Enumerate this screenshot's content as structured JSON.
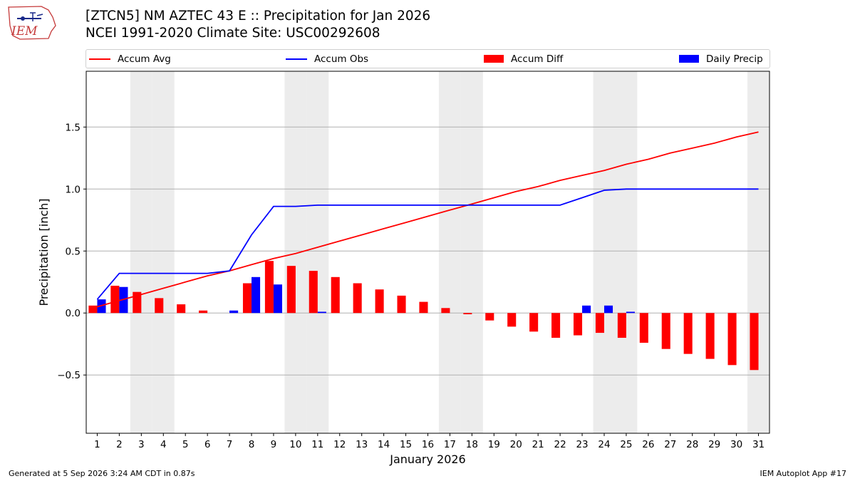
{
  "header": {
    "title_line1": "[ZTCN5] NM AZTEC 43 E :: Precipitation for Jan 2026",
    "title_line2": "NCEI 1991-2020 Climate Site: USC00292608"
  },
  "logo": {
    "text": "IEM"
  },
  "legend": {
    "accum_avg": "Accum Avg",
    "accum_obs": "Accum Obs",
    "accum_diff": "Accum Diff",
    "daily_precip": "Daily Precip"
  },
  "colors": {
    "avg": "#ff0000",
    "obs": "#0000ff",
    "diff": "#ff0000",
    "daily": "#0000ff",
    "weekend": "#ececec",
    "grid": "#b0b0b0"
  },
  "chart_data": {
    "type": "bar",
    "xlabel": "January 2026",
    "ylabel": "Precipitation [inch]",
    "ylim": [
      -0.97,
      1.95
    ],
    "yticks": [
      -0.5,
      0.0,
      0.5,
      1.0,
      1.5
    ],
    "ytick_labels": [
      "−0.5",
      "0.0",
      "0.5",
      "1.0",
      "1.5"
    ],
    "grid": "horizontal",
    "legend_position": "top",
    "x": [
      1,
      2,
      3,
      4,
      5,
      6,
      7,
      8,
      9,
      10,
      11,
      12,
      13,
      14,
      15,
      16,
      17,
      18,
      19,
      20,
      21,
      22,
      23,
      24,
      25,
      26,
      27,
      28,
      29,
      30,
      31
    ],
    "shaded_days": [
      3,
      4,
      10,
      11,
      17,
      18,
      24,
      25,
      31
    ],
    "series": [
      {
        "name": "Accum Avg",
        "kind": "line",
        "values": [
          0.05,
          0.1,
          0.15,
          0.2,
          0.25,
          0.3,
          0.34,
          0.39,
          0.44,
          0.48,
          0.53,
          0.58,
          0.63,
          0.68,
          0.73,
          0.78,
          0.83,
          0.88,
          0.93,
          0.98,
          1.02,
          1.07,
          1.11,
          1.15,
          1.2,
          1.24,
          1.29,
          1.33,
          1.37,
          1.42,
          1.46
        ]
      },
      {
        "name": "Accum Obs",
        "kind": "line",
        "values": [
          0.11,
          0.32,
          0.32,
          0.32,
          0.32,
          0.32,
          0.34,
          0.63,
          0.86,
          0.86,
          0.87,
          0.87,
          0.87,
          0.87,
          0.87,
          0.87,
          0.87,
          0.87,
          0.87,
          0.87,
          0.87,
          0.87,
          0.93,
          0.99,
          1.0,
          1.0,
          1.0,
          1.0,
          1.0,
          1.0,
          1.0
        ]
      },
      {
        "name": "Accum Diff",
        "kind": "bar",
        "values": [
          0.06,
          0.22,
          0.17,
          0.12,
          0.07,
          0.02,
          0.0,
          0.24,
          0.42,
          0.38,
          0.34,
          0.29,
          0.24,
          0.19,
          0.14,
          0.09,
          0.04,
          -0.01,
          -0.06,
          -0.11,
          -0.15,
          -0.2,
          -0.18,
          -0.16,
          -0.2,
          -0.24,
          -0.29,
          -0.33,
          -0.37,
          -0.42,
          -0.46
        ]
      },
      {
        "name": "Daily Precip",
        "kind": "bar",
        "values": [
          0.11,
          0.21,
          0.0,
          0.0,
          0.0,
          0.0,
          0.02,
          0.29,
          0.23,
          0.0,
          0.01,
          0.0,
          0.0,
          0.0,
          0.0,
          0.0,
          0.0,
          0.0,
          0.0,
          0.0,
          0.0,
          0.0,
          0.06,
          0.06,
          0.01,
          0.0,
          0.0,
          0.0,
          0.0,
          0.0,
          0.0
        ]
      }
    ]
  },
  "footer": {
    "left": "Generated at 5 Sep 2026 3:24 AM CDT in 0.87s",
    "right": "IEM Autoplot App #17"
  }
}
